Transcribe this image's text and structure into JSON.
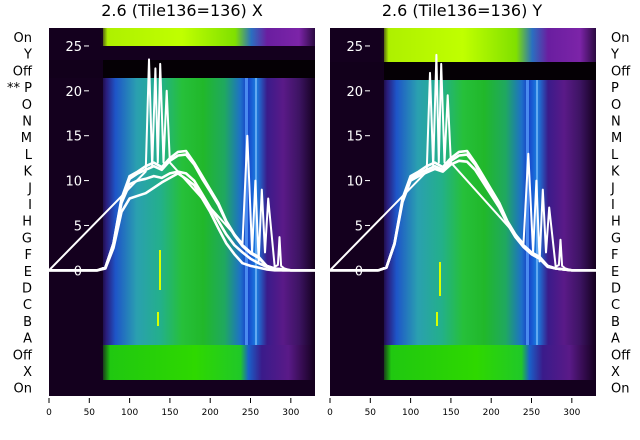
{
  "chart_data": [
    {
      "type": "line",
      "title": "2.6 (Tile136=136) X",
      "background": "heatmap",
      "xlim": [
        0,
        330
      ],
      "ylim": [
        -14,
        27
      ],
      "x_ticks": [
        0,
        50,
        100,
        150,
        200,
        250,
        300
      ],
      "y_ticks": [
        0,
        5,
        10,
        15,
        20,
        25
      ],
      "row_labels_left": [
        "On",
        "Y",
        "Off",
        "** P",
        "O",
        "N",
        "M",
        "L",
        "K",
        "J",
        "I",
        "H",
        "G",
        "F",
        "E",
        "D",
        "C",
        "B",
        "A",
        "Off",
        "X",
        "On"
      ],
      "series": [
        {
          "x": [
            0,
            60,
            70,
            80,
            90,
            100,
            110,
            120,
            130,
            140,
            150,
            160,
            170,
            180,
            190,
            200,
            210,
            220,
            230,
            240,
            250,
            260,
            270,
            280,
            290,
            300,
            310,
            330
          ],
          "y": [
            0,
            0,
            0.3,
            3,
            8,
            10.5,
            11,
            11.6,
            12,
            11.5,
            12.5,
            13.2,
            13.3,
            12,
            10.5,
            9,
            7.5,
            5.5,
            4,
            2.8,
            2,
            1.5,
            0.5,
            0.2,
            0.1,
            0,
            0,
            0
          ]
        },
        {
          "x": [
            0,
            60,
            70,
            80,
            90,
            100,
            110,
            120,
            130,
            140,
            150,
            160,
            170,
            180,
            190,
            200,
            210,
            220,
            230,
            240,
            250,
            260,
            270,
            280,
            290,
            300,
            310,
            330
          ],
          "y": [
            0,
            0,
            0.3,
            3,
            7.8,
            10.2,
            10.8,
            11.2,
            11.6,
            11.2,
            12.2,
            12.8,
            12.9,
            11.8,
            10.2,
            8.8,
            7.3,
            5.4,
            3.9,
            2.7,
            1.9,
            1.4,
            0.5,
            0.2,
            0.1,
            0,
            0,
            0
          ]
        },
        {
          "x": [
            0,
            60,
            70,
            80,
            90,
            100,
            110,
            120,
            130,
            140,
            150,
            160,
            170,
            180,
            190,
            200,
            210,
            220,
            230,
            240,
            250,
            260,
            270,
            280,
            290,
            300,
            310,
            330
          ],
          "y": [
            0,
            0,
            0.3,
            2.8,
            7.5,
            9.6,
            10,
            10.2,
            10.5,
            10.3,
            10.8,
            11,
            10.8,
            10,
            8.5,
            7,
            5.5,
            4,
            2.8,
            2,
            1.3,
            0.8,
            0.4,
            0.1,
            0,
            0,
            0,
            0
          ]
        },
        {
          "x": [
            0,
            60,
            70,
            80,
            90,
            100,
            110,
            120,
            130,
            140,
            150,
            160,
            170,
            180,
            190,
            200,
            210,
            220,
            230,
            240,
            250,
            260,
            270,
            280,
            290,
            300,
            310,
            330
          ],
          "y": [
            0,
            0,
            0.2,
            2.5,
            6.5,
            8,
            8.3,
            8.6,
            9.2,
            9.8,
            10.3,
            10.8,
            10.2,
            9.5,
            8,
            6.5,
            4.7,
            3,
            1.8,
            0.8,
            0.5,
            0.3,
            0.1,
            0,
            0,
            0,
            0,
            0
          ]
        },
        {
          "x": [
            0,
            120,
            124,
            128,
            132,
            135,
            138,
            142,
            146,
            150,
            240,
            246,
            252,
            256,
            260,
            264,
            268,
            272,
            280,
            284,
            286,
            288,
            292,
            300,
            330
          ],
          "y": [
            0,
            11,
            23.5,
            11.5,
            22.5,
            12,
            23,
            12,
            20,
            12,
            3,
            15,
            2,
            10,
            1,
            9,
            2,
            8,
            0.4,
            0.6,
            3.7,
            0.5,
            0.2,
            0,
            0
          ]
        }
      ]
    },
    {
      "type": "line",
      "title": "2.6 (Tile136=136) Y",
      "background": "heatmap",
      "xlim": [
        0,
        330
      ],
      "ylim": [
        -14,
        27
      ],
      "x_ticks": [
        0,
        50,
        100,
        150,
        200,
        250,
        300
      ],
      "y_ticks": [
        0,
        5,
        10,
        15,
        20,
        25
      ],
      "row_labels_right": [
        "On",
        "Y",
        "Off",
        "P",
        "O",
        "N",
        "M",
        "L",
        "K",
        "J",
        "I",
        "H",
        "G",
        "F",
        "E",
        "D",
        "C",
        "B",
        "A",
        "Off",
        "X",
        "On"
      ],
      "series": [
        {
          "x": [
            0,
            60,
            70,
            80,
            90,
            100,
            110,
            120,
            130,
            140,
            150,
            160,
            170,
            180,
            190,
            200,
            210,
            220,
            230,
            240,
            250,
            260,
            270,
            280,
            290,
            300,
            310,
            330
          ],
          "y": [
            0,
            0,
            0.3,
            3,
            8,
            10.5,
            11,
            11.6,
            12,
            11.5,
            12.5,
            13.2,
            13.3,
            12,
            10.5,
            9,
            7.5,
            5.5,
            4,
            2.8,
            2,
            1.5,
            0.5,
            0.2,
            0.1,
            0,
            0,
            0
          ]
        },
        {
          "x": [
            0,
            60,
            70,
            80,
            90,
            100,
            110,
            120,
            130,
            140,
            150,
            160,
            170,
            180,
            190,
            200,
            210,
            220,
            230,
            240,
            250,
            260,
            270,
            280,
            290,
            300,
            310,
            330
          ],
          "y": [
            0,
            0,
            0.3,
            3,
            7.8,
            10.2,
            10.8,
            11.2,
            11.6,
            11.2,
            12.2,
            12.8,
            12.9,
            11.8,
            10.2,
            8.8,
            7.3,
            5.4,
            3.9,
            2.7,
            1.9,
            1.4,
            0.5,
            0.2,
            0.1,
            0,
            0,
            0
          ]
        },
        {
          "x": [
            0,
            60,
            70,
            80,
            90,
            100,
            110,
            120,
            130,
            140,
            150,
            160,
            170,
            180,
            190,
            200,
            210,
            220,
            230,
            240,
            250,
            260,
            270,
            280,
            290,
            300,
            310,
            330
          ],
          "y": [
            0,
            0,
            0.3,
            2.9,
            7.6,
            10,
            10.5,
            10.9,
            11.3,
            11,
            11.8,
            12.2,
            12.1,
            11.2,
            9.8,
            8.4,
            7,
            5.2,
            3.7,
            2.6,
            1.8,
            1.3,
            0.4,
            0.2,
            0.1,
            0,
            0,
            0
          ]
        },
        {
          "x": [
            0,
            120,
            124,
            128,
            132,
            135,
            138,
            142,
            146,
            150,
            240,
            246,
            252,
            256,
            260,
            264,
            268,
            272,
            280,
            284,
            286,
            288,
            292,
            300,
            330
          ],
          "y": [
            0,
            11,
            22,
            11.5,
            24,
            12,
            23,
            12,
            19.5,
            12,
            3,
            13,
            2,
            10,
            1,
            9,
            2,
            7,
            0.4,
            0.6,
            3.4,
            0.5,
            0.2,
            0,
            0
          ]
        }
      ]
    }
  ],
  "colors": {
    "curve": "#ffffff",
    "frame_dark": "#12001a",
    "band_dark": "#000000",
    "band_green": "#22cc00",
    "band_yellow": "#b8ff00",
    "band_purple": "#7a1c9a",
    "band_blue": "#1a6fd4",
    "band_teal": "#1aa37a"
  }
}
